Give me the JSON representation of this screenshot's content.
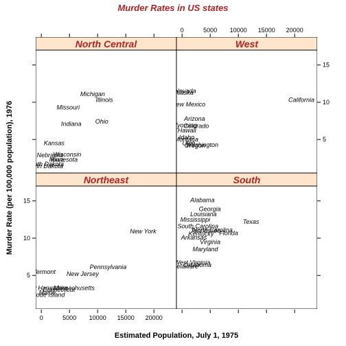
{
  "chart_data": {
    "type": "scatter",
    "title": "Murder Rates in US states",
    "xlabel": "Estimated Population, July 1, 1975",
    "ylabel": "Murder Rate (per 100,000 population), 1976",
    "xlim": [
      -1000,
      24000
    ],
    "ylim": [
      0.5,
      17
    ],
    "x_ticks": [
      0,
      5000,
      10000,
      15000,
      20000
    ],
    "y_ticks": [
      5,
      10,
      15
    ],
    "strip_color": "#ffe5cc",
    "title_color": "#b22222",
    "panels": [
      {
        "name": "North Central",
        "points": [
          {
            "label": "Michigan",
            "x": 9111,
            "y": 11.1
          },
          {
            "label": "Illinois",
            "x": 11197,
            "y": 10.3
          },
          {
            "label": "Missouri",
            "x": 4767,
            "y": 9.3
          },
          {
            "label": "Ohio",
            "x": 10735,
            "y": 7.4
          },
          {
            "label": "Indiana",
            "x": 5313,
            "y": 7.1
          },
          {
            "label": "Kansas",
            "x": 2280,
            "y": 4.5
          },
          {
            "label": "Nebraska",
            "x": 1544,
            "y": 2.9
          },
          {
            "label": "Wisconsin",
            "x": 4589,
            "y": 3.0
          },
          {
            "label": "Minnesota",
            "x": 3921,
            "y": 2.3
          },
          {
            "label": "Iowa",
            "x": 2861,
            "y": 2.3
          },
          {
            "label": "South Dakota",
            "x": 681,
            "y": 1.7
          },
          {
            "label": "North Dakota",
            "x": 637,
            "y": 1.4
          }
        ]
      },
      {
        "name": "West",
        "points": [
          {
            "label": "Nevada",
            "x": 590,
            "y": 11.5
          },
          {
            "label": "Alaska",
            "x": 365,
            "y": 11.3
          },
          {
            "label": "California",
            "x": 21198,
            "y": 10.3
          },
          {
            "label": "New Mexico",
            "x": 1144,
            "y": 9.7
          },
          {
            "label": "Arizona",
            "x": 2212,
            "y": 7.8
          },
          {
            "label": "Colorado",
            "x": 2541,
            "y": 6.8
          },
          {
            "label": "Wyoming",
            "x": 376,
            "y": 6.9
          },
          {
            "label": "Hawaii",
            "x": 868,
            "y": 6.2
          },
          {
            "label": "Oregon",
            "x": 2284,
            "y": 4.2
          },
          {
            "label": "Washington",
            "x": 3559,
            "y": 4.3
          },
          {
            "label": "Idaho",
            "x": 813,
            "y": 5.3
          },
          {
            "label": "Montana",
            "x": 746,
            "y": 5.0
          },
          {
            "label": "Utah",
            "x": 1203,
            "y": 4.5
          }
        ]
      },
      {
        "name": "Northeast",
        "points": [
          {
            "label": "New York",
            "x": 18076,
            "y": 10.9
          },
          {
            "label": "Pennsylvania",
            "x": 11860,
            "y": 6.1
          },
          {
            "label": "New Jersey",
            "x": 7333,
            "y": 5.2
          },
          {
            "label": "Vermont",
            "x": 472,
            "y": 5.5
          },
          {
            "label": "Massachusetts",
            "x": 5814,
            "y": 3.3
          },
          {
            "label": "Connecticut",
            "x": 3100,
            "y": 3.1
          },
          {
            "label": "New Hampshire",
            "x": 812,
            "y": 3.3
          },
          {
            "label": "Maine",
            "x": 1058,
            "y": 2.7
          },
          {
            "label": "Rhode Island",
            "x": 931,
            "y": 2.4
          }
        ]
      },
      {
        "name": "South",
        "points": [
          {
            "label": "Alabama",
            "x": 3615,
            "y": 15.1
          },
          {
            "label": "Georgia",
            "x": 4931,
            "y": 13.9
          },
          {
            "label": "Louisiana",
            "x": 3806,
            "y": 13.2
          },
          {
            "label": "Mississippi",
            "x": 2341,
            "y": 12.5
          },
          {
            "label": "Texas",
            "x": 12237,
            "y": 12.2
          },
          {
            "label": "South Carolina",
            "x": 2816,
            "y": 11.6
          },
          {
            "label": "North Carolina",
            "x": 5441,
            "y": 11.1
          },
          {
            "label": "Tennessee",
            "x": 4173,
            "y": 11.0
          },
          {
            "label": "Florida",
            "x": 8277,
            "y": 10.7
          },
          {
            "label": "Kentucky",
            "x": 3387,
            "y": 10.6
          },
          {
            "label": "Arkansas",
            "x": 2110,
            "y": 10.1
          },
          {
            "label": "Virginia",
            "x": 4981,
            "y": 9.5
          },
          {
            "label": "Maryland",
            "x": 4122,
            "y": 8.5
          },
          {
            "label": "West Virginia",
            "x": 1799,
            "y": 6.7
          },
          {
            "label": "Oklahoma",
            "x": 2715,
            "y": 6.4
          },
          {
            "label": "Delaware",
            "x": 579,
            "y": 6.2
          }
        ]
      }
    ]
  }
}
